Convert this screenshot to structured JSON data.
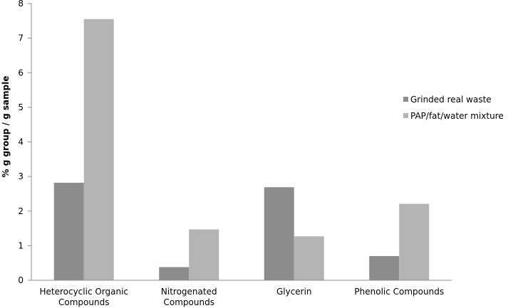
{
  "chart_data": {
    "type": "bar",
    "categories": [
      [
        "Heterocyclic Organic",
        "Compounds"
      ],
      [
        "Nitrogenated",
        "Compounds"
      ],
      [
        "Glycerin"
      ],
      [
        "Phenolic Compounds"
      ]
    ],
    "series": [
      {
        "name": "Grinded real waste",
        "values": [
          2.82,
          0.38,
          2.69,
          0.7
        ],
        "color": "#8c8c8c"
      },
      {
        "name": "PAP/fat/water mixture",
        "values": [
          7.55,
          1.47,
          1.27,
          2.21
        ],
        "color": "#b4b4b4"
      }
    ],
    "ylabel": "%  g group  /  g sample",
    "ylim": [
      0,
      8
    ],
    "yticks": [
      0,
      1,
      2,
      3,
      4,
      5,
      6,
      7,
      8
    ],
    "grid": false,
    "legend_position": "right"
  }
}
